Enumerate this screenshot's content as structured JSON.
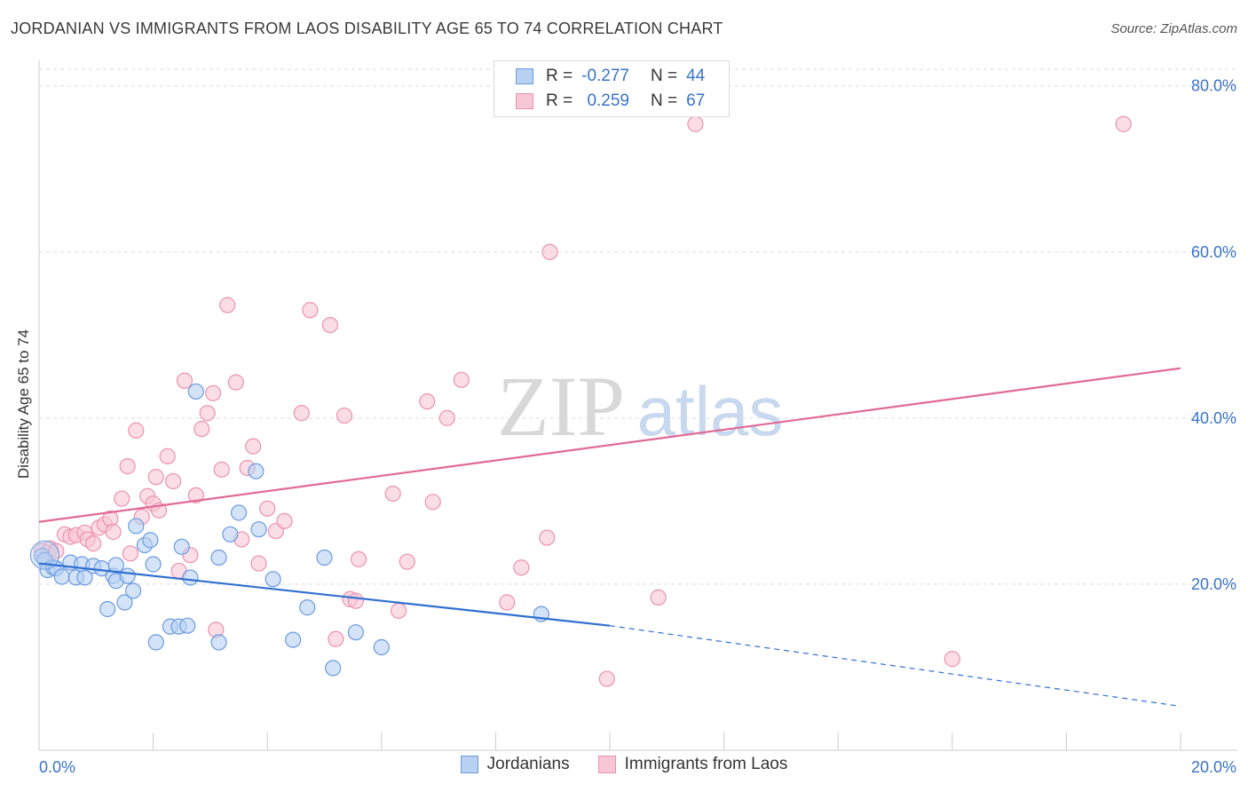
{
  "header": {
    "title": "JORDANIAN VS IMMIGRANTS FROM LAOS DISABILITY AGE 65 TO 74 CORRELATION CHART",
    "source": "Source: ZipAtlas.com"
  },
  "watermark": {
    "zip": "ZIP",
    "atlas": "atlas"
  },
  "legend_top": {
    "rows": [
      {
        "r_label": "R =",
        "r_value": "-0.277",
        "n_label": "N =",
        "n_value": "44"
      },
      {
        "r_label": "R =",
        "r_value": "0.259",
        "n_label": "N =",
        "n_value": "67"
      }
    ]
  },
  "legend_bottom": [
    "Jordanians",
    "Immigrants from Laos"
  ],
  "colors": {
    "blue_fill": "#b8d0f2",
    "blue_stroke": "#6b9be0",
    "blue_line": "#2f6fd0",
    "pink_fill": "#f8c7d6",
    "pink_stroke": "#ec92b0",
    "pink_line": "#e06a96",
    "tick_label": "#3a72c8",
    "grid": "#dddddd"
  },
  "chart_data": {
    "type": "scatter",
    "title": "JORDANIAN VS IMMIGRANTS FROM LAOS DISABILITY AGE 65 TO 74 CORRELATION CHART",
    "xlabel": "",
    "ylabel": "Disability Age 65 to 74",
    "xlim": [
      0,
      20
    ],
    "ylim": [
      0,
      82
    ],
    "x_tick_labels": [
      "0.0%",
      "20.0%"
    ],
    "y_ticks": [
      20,
      40,
      60,
      80
    ],
    "y_tick_labels": [
      "20.0%",
      "40.0%",
      "60.0%",
      "80.0%"
    ],
    "series": [
      {
        "name": "Jordanians",
        "r": -0.277,
        "n": 44,
        "trend": {
          "x0": 0,
          "y0": 22.5,
          "x1": 10,
          "y1": 15.0,
          "dash_to_x": 20,
          "dash_to_y": 5.3
        },
        "points": [
          [
            0.05,
            23.4
          ],
          [
            0.1,
            22.9
          ],
          [
            0.15,
            21.7
          ],
          [
            0.25,
            22.0
          ],
          [
            0.3,
            21.9
          ],
          [
            0.4,
            20.9
          ],
          [
            0.55,
            22.6
          ],
          [
            0.65,
            20.8
          ],
          [
            0.75,
            22.4
          ],
          [
            0.8,
            20.8
          ],
          [
            0.95,
            22.2
          ],
          [
            1.1,
            21.9
          ],
          [
            1.2,
            17.0
          ],
          [
            1.3,
            21.0
          ],
          [
            1.35,
            22.3
          ],
          [
            1.35,
            20.4
          ],
          [
            1.5,
            17.8
          ],
          [
            1.55,
            21.0
          ],
          [
            1.65,
            19.2
          ],
          [
            1.7,
            27.0
          ],
          [
            1.85,
            24.7
          ],
          [
            1.95,
            25.3
          ],
          [
            2.0,
            22.4
          ],
          [
            2.05,
            13.0
          ],
          [
            2.3,
            14.9
          ],
          [
            2.45,
            14.9
          ],
          [
            2.5,
            24.5
          ],
          [
            2.6,
            15.0
          ],
          [
            2.65,
            20.8
          ],
          [
            2.75,
            43.2
          ],
          [
            3.15,
            23.2
          ],
          [
            3.15,
            13.0
          ],
          [
            3.35,
            26.0
          ],
          [
            3.5,
            28.6
          ],
          [
            3.8,
            33.6
          ],
          [
            3.85,
            26.6
          ],
          [
            4.1,
            20.6
          ],
          [
            4.45,
            13.3
          ],
          [
            4.7,
            17.2
          ],
          [
            5.0,
            23.2
          ],
          [
            5.15,
            9.9
          ],
          [
            5.55,
            14.2
          ],
          [
            6.0,
            12.4
          ],
          [
            8.8,
            16.4
          ]
        ]
      },
      {
        "name": "Immigrants from Laos",
        "r": 0.259,
        "n": 67,
        "trend": {
          "x0": 0,
          "y0": 27.5,
          "x1": 20,
          "y1": 46.0
        },
        "points": [
          [
            0.05,
            24.0
          ],
          [
            0.15,
            23.8
          ],
          [
            0.2,
            24.3
          ],
          [
            0.3,
            24.0
          ],
          [
            0.45,
            26.0
          ],
          [
            0.55,
            25.7
          ],
          [
            0.65,
            25.9
          ],
          [
            0.8,
            26.2
          ],
          [
            0.85,
            25.4
          ],
          [
            0.95,
            24.9
          ],
          [
            1.05,
            26.8
          ],
          [
            1.15,
            27.2
          ],
          [
            1.25,
            27.9
          ],
          [
            1.3,
            26.3
          ],
          [
            1.45,
            30.3
          ],
          [
            1.55,
            34.2
          ],
          [
            1.6,
            23.7
          ],
          [
            1.7,
            38.5
          ],
          [
            1.8,
            28.1
          ],
          [
            1.9,
            30.6
          ],
          [
            2.0,
            29.7
          ],
          [
            2.05,
            32.9
          ],
          [
            2.1,
            28.9
          ],
          [
            2.25,
            35.4
          ],
          [
            2.35,
            32.4
          ],
          [
            2.45,
            21.6
          ],
          [
            2.55,
            44.5
          ],
          [
            2.65,
            23.5
          ],
          [
            2.75,
            30.7
          ],
          [
            2.85,
            38.7
          ],
          [
            2.95,
            40.6
          ],
          [
            3.05,
            43.0
          ],
          [
            3.1,
            14.5
          ],
          [
            3.2,
            33.8
          ],
          [
            3.3,
            53.6
          ],
          [
            3.45,
            44.3
          ],
          [
            3.55,
            25.4
          ],
          [
            3.65,
            34.0
          ],
          [
            3.75,
            36.6
          ],
          [
            3.85,
            22.5
          ],
          [
            4.0,
            29.1
          ],
          [
            4.15,
            26.4
          ],
          [
            4.3,
            27.6
          ],
          [
            4.6,
            40.6
          ],
          [
            4.75,
            53.0
          ],
          [
            5.1,
            51.2
          ],
          [
            5.2,
            13.4
          ],
          [
            5.35,
            40.3
          ],
          [
            5.45,
            18.2
          ],
          [
            5.55,
            18.0
          ],
          [
            5.6,
            23.0
          ],
          [
            6.2,
            30.9
          ],
          [
            6.3,
            16.8
          ],
          [
            6.45,
            22.7
          ],
          [
            6.8,
            42.0
          ],
          [
            6.9,
            29.9
          ],
          [
            7.15,
            40.0
          ],
          [
            7.4,
            44.6
          ],
          [
            8.2,
            17.8
          ],
          [
            8.45,
            22.0
          ],
          [
            8.9,
            25.6
          ],
          [
            8.95,
            60.0
          ],
          [
            9.95,
            8.6
          ],
          [
            10.85,
            18.4
          ],
          [
            11.5,
            75.4
          ],
          [
            16.0,
            11.0
          ],
          [
            19.0,
            75.4
          ]
        ]
      }
    ]
  }
}
